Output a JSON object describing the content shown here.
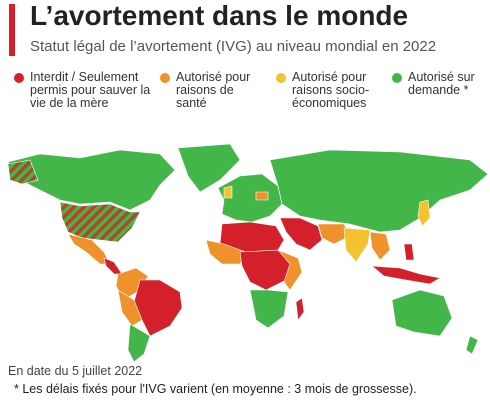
{
  "header": {
    "title": "L’avortement dans le monde",
    "subtitle": "Statut légal de l’avortement (IVG) au niveau mondial en 2022"
  },
  "legend": [
    {
      "label": "Interdit / Seulement permis pour sauver la vie de la mère",
      "color": "#d3202b"
    },
    {
      "label": "Autorisé pour raisons de santé",
      "color": "#f0922b"
    },
    {
      "label": "Autorisé pour raisons socio-économiques",
      "color": "#f2c230"
    },
    {
      "label": "Autorisé sur demande *",
      "color": "#43b649"
    }
  ],
  "footer": {
    "date": "En date du 5 juillet 2022",
    "note": "* Les délais fixés pour l'IVG varient (en moyenne : 3 mois de grossesse)."
  }
}
